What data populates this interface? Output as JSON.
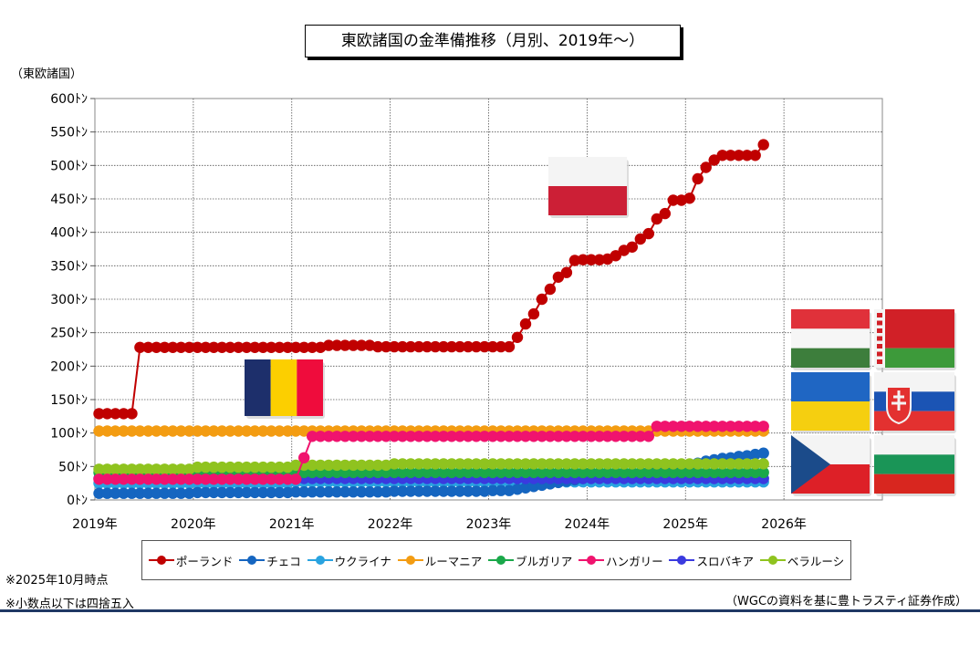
{
  "title": "東欧諸国の金準備推移（月別、2019年～）",
  "unit_label": "（東欧諸国）",
  "notes": [
    "※2025年10月時点",
    "※小数点以下は四捨五入"
  ],
  "source": "（WGCの資料を基に豊トラスティ証券作成）",
  "legend": [
    {
      "name": "ポーランド",
      "color": "#c00000"
    },
    {
      "name": "チェコ",
      "color": "#1565c0"
    },
    {
      "name": "ウクライナ",
      "color": "#29a3e0"
    },
    {
      "name": "ルーマニア",
      "color": "#f39c12"
    },
    {
      "name": "ブルガリア",
      "color": "#1aa84a"
    },
    {
      "name": "ハンガリー",
      "color": "#f0136e"
    },
    {
      "name": "スロバキア",
      "color": "#3a3adf"
    },
    {
      "name": "ベラルーシ",
      "color": "#8fc31f"
    }
  ],
  "flags": [
    "poland",
    "romania",
    "hungary",
    "belarus",
    "ukraine",
    "slovakia",
    "czech",
    "bulgaria"
  ],
  "chart_data": {
    "type": "line",
    "x_start": "2019-01",
    "x_end": "2025-10",
    "x_ticks": [
      "2019年",
      "2020年",
      "2021年",
      "2022年",
      "2023年",
      "2024年",
      "2025年",
      "2026年"
    ],
    "y_ticks": [
      "0ﾄﾝ",
      "50ﾄﾝ",
      "100ﾄﾝ",
      "150ﾄﾝ",
      "200ﾄﾝ",
      "250ﾄﾝ",
      "300ﾄﾝ",
      "350ﾄﾝ",
      "400ﾄﾝ",
      "450ﾄﾝ",
      "500ﾄﾝ",
      "550ﾄﾝ",
      "600ﾄﾝ"
    ],
    "ylim": [
      0,
      600
    ],
    "xlim": [
      "2019-01",
      "2026-12"
    ],
    "grid": true,
    "legend_position": "bottom",
    "series": [
      {
        "name": "ポーランド",
        "color": "#c00000",
        "segments": [
          {
            "from": "2019-01",
            "to": "2019-05",
            "value": 129
          },
          {
            "from": "2019-06",
            "to": "2021-04",
            "value": 228
          },
          {
            "from": "2021-05",
            "to": "2021-10",
            "value": 231
          },
          {
            "from": "2021-11",
            "to": "2023-03",
            "value": 229
          }
        ],
        "points": [
          [
            "2023-04",
            243
          ],
          [
            "2023-05",
            263
          ],
          [
            "2023-06",
            278
          ],
          [
            "2023-07",
            300
          ],
          [
            "2023-08",
            315
          ],
          [
            "2023-09",
            333
          ],
          [
            "2023-10",
            340
          ],
          [
            "2023-11",
            358
          ],
          [
            "2023-12",
            359
          ],
          [
            "2024-01",
            359
          ],
          [
            "2024-02",
            359
          ],
          [
            "2024-03",
            360
          ],
          [
            "2024-04",
            365
          ],
          [
            "2024-05",
            373
          ],
          [
            "2024-06",
            378
          ],
          [
            "2024-07",
            390
          ],
          [
            "2024-08",
            398
          ],
          [
            "2024-09",
            420
          ],
          [
            "2024-10",
            428
          ],
          [
            "2024-11",
            448
          ],
          [
            "2024-12",
            448
          ],
          [
            "2025-01",
            451
          ],
          [
            "2025-02",
            480
          ],
          [
            "2025-03",
            497
          ],
          [
            "2025-04",
            508
          ],
          [
            "2025-05",
            515
          ],
          [
            "2025-06",
            515
          ],
          [
            "2025-07",
            515
          ],
          [
            "2025-08",
            515
          ],
          [
            "2025-09",
            515
          ],
          [
            "2025-10",
            531
          ]
        ]
      },
      {
        "name": "チェコ",
        "color": "#1565c0",
        "segments": [
          {
            "from": "2019-01",
            "to": "2019-12",
            "value": 10
          },
          {
            "from": "2020-01",
            "to": "2020-12",
            "value": 11
          },
          {
            "from": "2021-01",
            "to": "2021-12",
            "value": 12
          },
          {
            "from": "2022-01",
            "to": "2022-12",
            "value": 13
          },
          {
            "from": "2023-01",
            "to": "2023-03",
            "value": 14
          }
        ],
        "points": [
          [
            "2023-04",
            16
          ],
          [
            "2023-05",
            18
          ],
          [
            "2023-06",
            20
          ],
          [
            "2023-07",
            22
          ],
          [
            "2023-08",
            24
          ],
          [
            "2023-09",
            26
          ],
          [
            "2023-10",
            28
          ],
          [
            "2023-11",
            30
          ],
          [
            "2023-12",
            32
          ],
          [
            "2024-01",
            34
          ],
          [
            "2024-02",
            36
          ],
          [
            "2024-03",
            37
          ],
          [
            "2024-04",
            38
          ],
          [
            "2024-05",
            39
          ],
          [
            "2024-06",
            40
          ],
          [
            "2024-07",
            41
          ],
          [
            "2024-08",
            42
          ],
          [
            "2024-09",
            43
          ],
          [
            "2024-10",
            44
          ],
          [
            "2024-11",
            45
          ],
          [
            "2024-12",
            46
          ],
          [
            "2025-01",
            51
          ],
          [
            "2025-02",
            55
          ],
          [
            "2025-03",
            58
          ],
          [
            "2025-04",
            60
          ],
          [
            "2025-05",
            62
          ],
          [
            "2025-06",
            63
          ],
          [
            "2025-07",
            65
          ],
          [
            "2025-08",
            66
          ],
          [
            "2025-09",
            68
          ],
          [
            "2025-10",
            70
          ]
        ]
      },
      {
        "name": "ウクライナ",
        "color": "#29a3e0",
        "segments": [
          {
            "from": "2019-01",
            "to": "2020-12",
            "value": 25
          },
          {
            "from": "2021-01",
            "to": "2025-10",
            "value": 27
          }
        ]
      },
      {
        "name": "ルーマニア",
        "color": "#f39c12",
        "segments": [
          {
            "from": "2019-01",
            "to": "2025-10",
            "value": 103
          }
        ]
      },
      {
        "name": "ブルガリア",
        "color": "#1aa84a",
        "segments": [
          {
            "from": "2019-01",
            "to": "2025-10",
            "value": 41
          }
        ]
      },
      {
        "name": "ハンガリー",
        "color": "#f0136e",
        "segments": [
          {
            "from": "2019-01",
            "to": "2021-01",
            "value": 31
          },
          {
            "from": "2021-03",
            "to": "2024-08",
            "value": 95
          },
          {
            "from": "2024-09",
            "to": "2025-10",
            "value": 110
          }
        ],
        "points": [
          [
            "2021-02",
            63
          ]
        ]
      },
      {
        "name": "スロバキア",
        "color": "#3a3adf",
        "segments": [
          {
            "from": "2019-01",
            "to": "2025-10",
            "value": 32
          }
        ]
      },
      {
        "name": "ベラルーシ",
        "color": "#8fc31f",
        "segments": [
          {
            "from": "2019-01",
            "to": "2019-12",
            "value": 46
          },
          {
            "from": "2020-01",
            "to": "2020-12",
            "value": 49
          },
          {
            "from": "2021-01",
            "to": "2021-12",
            "value": 52
          },
          {
            "from": "2022-01",
            "to": "2025-10",
            "value": 54
          }
        ]
      }
    ]
  }
}
